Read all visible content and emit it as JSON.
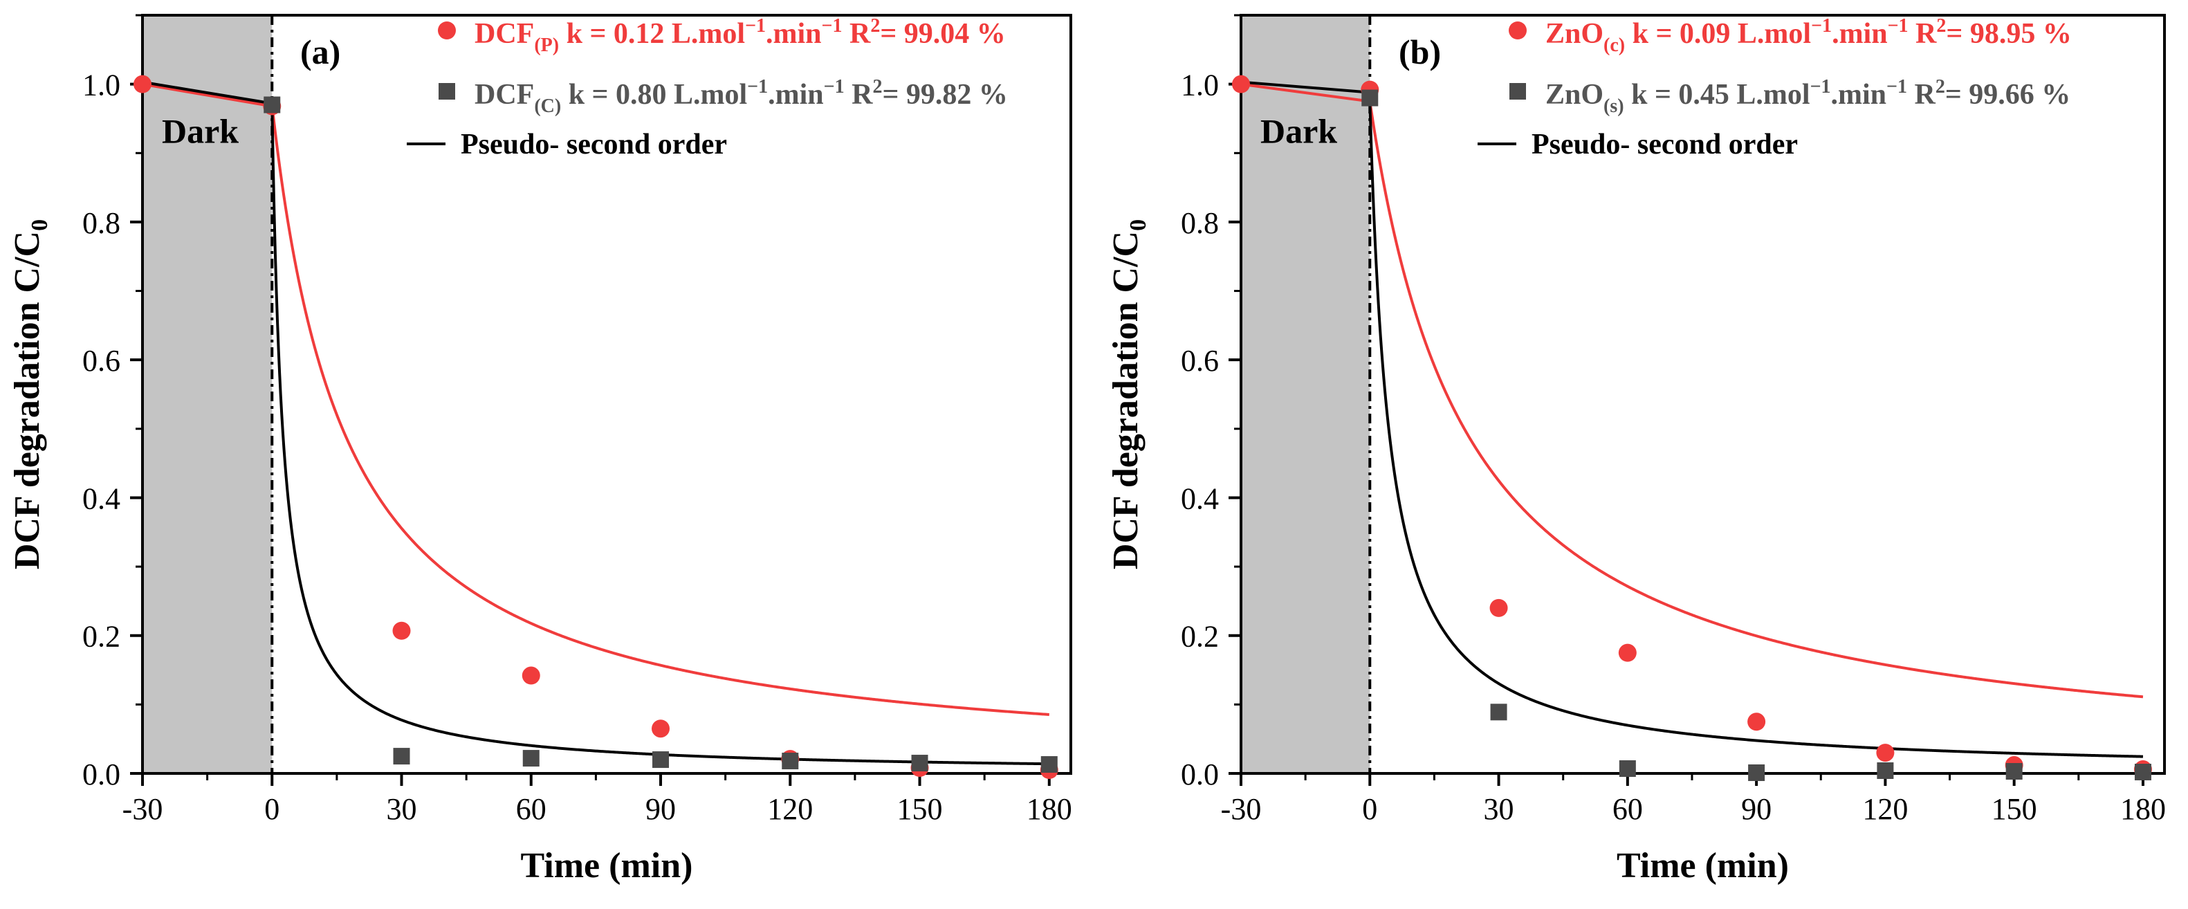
{
  "colors": {
    "red": "#F03C3C",
    "gray_square": "#4A4A4A",
    "dark_region": "#C4C4C4",
    "axis": "#000000"
  },
  "chart_data": [
    {
      "type": "scatter",
      "panel_label": "(a)",
      "xlabel": "Time (min)",
      "ylabel_main": "DCF degradation C/C",
      "ylabel_sub": "0",
      "xlim": [
        -30,
        185
      ],
      "ylim": [
        0,
        1.1
      ],
      "xticks": [
        "-30",
        "0",
        "30",
        "60",
        "90",
        "120",
        "150",
        "180"
      ],
      "xtick_values": [
        -30,
        0,
        30,
        60,
        90,
        120,
        150,
        180
      ],
      "yticks": [
        "0.0",
        "0.2",
        "0.4",
        "0.6",
        "0.8",
        "1.0"
      ],
      "ytick_values": [
        0,
        0.2,
        0.4,
        0.6,
        0.8,
        1.0
      ],
      "dark_region": {
        "label": "Dark",
        "x_range": [
          -30,
          0
        ]
      },
      "series": [
        {
          "name": "DCF(P)",
          "marker": "circle",
          "color": "#F03C3C",
          "legend_name": "DCF",
          "legend_sub": "(P)",
          "legend_k": "k = 0.12 L.mol",
          "legend_k_unit": ".min",
          "legend_exp": "−1",
          "legend_r2": "R",
          "legend_r2_sup": "2",
          "legend_r2_val": "= 99.04 %",
          "x": [
            -30,
            0,
            30,
            60,
            90,
            120,
            150,
            180
          ],
          "y": [
            1.0,
            0.968,
            0.207,
            0.142,
            0.065,
            0.021,
            0.008,
            0.005
          ],
          "fit": {
            "dark": [
              [
                -30,
                1.0
              ],
              [
                0,
                0.968
              ]
            ],
            "k": 0.12,
            "C0": 0.97,
            "c0_mol": 150
          }
        },
        {
          "name": "DCF(C)",
          "marker": "square",
          "color": "#4A4A4A",
          "legend_name": "DCF",
          "legend_sub": "(C)",
          "legend_k": "k = 0.80 L.mol",
          "legend_k_unit": ".min",
          "legend_exp": "−1",
          "legend_r2": "R",
          "legend_r2_sup": "2",
          "legend_r2_val": "= 99.82 %",
          "x": [
            0,
            30,
            60,
            90,
            120,
            150,
            180
          ],
          "y": [
            0.97,
            0.025,
            0.022,
            0.02,
            0.018,
            0.015,
            0.013
          ],
          "fit": {
            "dark": [
              [
                -30,
                1.003
              ],
              [
                0,
                0.972
              ]
            ],
            "k": 0.8,
            "C0": 0.97,
            "c0_mol": 150
          }
        }
      ],
      "fit_legend": "Pseudo- second order"
    },
    {
      "type": "scatter",
      "panel_label": "(b)",
      "xlabel": "Time (min)",
      "ylabel_main": "DCF degradation C/C",
      "ylabel_sub": "0",
      "xlim": [
        -30,
        185
      ],
      "ylim": [
        0,
        1.1
      ],
      "xticks": [
        "-30",
        "0",
        "30",
        "60",
        "90",
        "120",
        "150",
        "180"
      ],
      "xtick_values": [
        -30,
        0,
        30,
        60,
        90,
        120,
        150,
        180
      ],
      "yticks": [
        "0.0",
        "0.2",
        "0.4",
        "0.6",
        "0.8",
        "1.0"
      ],
      "ytick_values": [
        0,
        0.2,
        0.4,
        0.6,
        0.8,
        1.0
      ],
      "dark_region": {
        "label": "Dark",
        "x_range": [
          -30,
          0
        ]
      },
      "series": [
        {
          "name": "ZnO(c)",
          "marker": "circle",
          "color": "#F03C3C",
          "legend_name": "ZnO",
          "legend_sub": "(c)",
          "legend_k": "k = 0.09 L.mol",
          "legend_k_unit": ".min",
          "legend_exp": "−1",
          "legend_r2": "R",
          "legend_r2_sup": "2",
          "legend_r2_val": "= 98.95 %",
          "x": [
            -30,
            0,
            30,
            60,
            90,
            120,
            150,
            180
          ],
          "y": [
            1.0,
            0.992,
            0.24,
            0.175,
            0.075,
            0.03,
            0.012,
            0.006
          ],
          "fit": {
            "dark": [
              [
                -30,
                1.0
              ],
              [
                0,
                0.975
              ]
            ],
            "k": 0.09,
            "C0": 0.975,
            "c0_mol": 150
          }
        },
        {
          "name": "ZnO(s)",
          "marker": "square",
          "color": "#4A4A4A",
          "legend_name": "ZnO",
          "legend_sub": "(s)",
          "legend_k": "k = 0.45 L.mol",
          "legend_k_unit": ".min",
          "legend_exp": "−1",
          "legend_r2": "R",
          "legend_r2_sup": "2",
          "legend_r2_val": "= 99.66 %",
          "x": [
            0,
            30,
            60,
            90,
            120,
            150,
            180
          ],
          "y": [
            0.98,
            0.089,
            0.007,
            0.001,
            0.004,
            0.003,
            0.002
          ],
          "fit": {
            "dark": [
              [
                -30,
                1.003
              ],
              [
                0,
                0.988
              ]
            ],
            "k": 0.45,
            "C0": 0.975,
            "c0_mol": 150
          }
        }
      ],
      "fit_legend": "Pseudo- second order"
    }
  ]
}
